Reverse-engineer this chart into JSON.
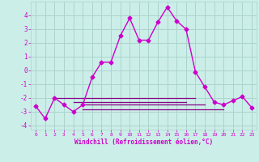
{
  "xlabel": "Windchill (Refroidissement éolien,°C)",
  "bg_color": "#cceee8",
  "grid_color": "#aad4cc",
  "line_color": "#cc00cc",
  "line_color2": "#880088",
  "x_main": [
    0,
    1,
    2,
    3,
    4,
    5,
    6,
    7,
    8,
    9,
    10,
    11,
    12,
    13,
    14,
    15,
    16,
    17,
    18,
    19,
    20,
    21,
    22,
    23
  ],
  "y_main": [
    -2.6,
    -3.5,
    -2.0,
    -2.5,
    -3.0,
    -2.5,
    -0.5,
    0.6,
    0.6,
    2.5,
    3.8,
    2.2,
    2.2,
    3.5,
    4.6,
    3.6,
    3.0,
    -0.1,
    -1.2,
    -2.3,
    -2.5,
    -2.2,
    -1.9,
    -2.7
  ],
  "flat_lines": [
    {
      "x": [
        2,
        17
      ],
      "y": [
        -2.0,
        -2.0
      ]
    },
    {
      "x": [
        4,
        16
      ],
      "y": [
        -2.3,
        -2.3
      ]
    },
    {
      "x": [
        5,
        18
      ],
      "y": [
        -2.5,
        -2.5
      ]
    },
    {
      "x": [
        5,
        20
      ],
      "y": [
        -2.8,
        -2.8
      ]
    }
  ],
  "ylim": [
    -4.3,
    5.0
  ],
  "xlim": [
    -0.5,
    23.5
  ],
  "yticks": [
    -4,
    -3,
    -2,
    -1,
    0,
    1,
    2,
    3,
    4
  ],
  "xticks": [
    0,
    1,
    2,
    3,
    4,
    5,
    6,
    7,
    8,
    9,
    10,
    11,
    12,
    13,
    14,
    15,
    16,
    17,
    18,
    19,
    20,
    21,
    22,
    23
  ]
}
